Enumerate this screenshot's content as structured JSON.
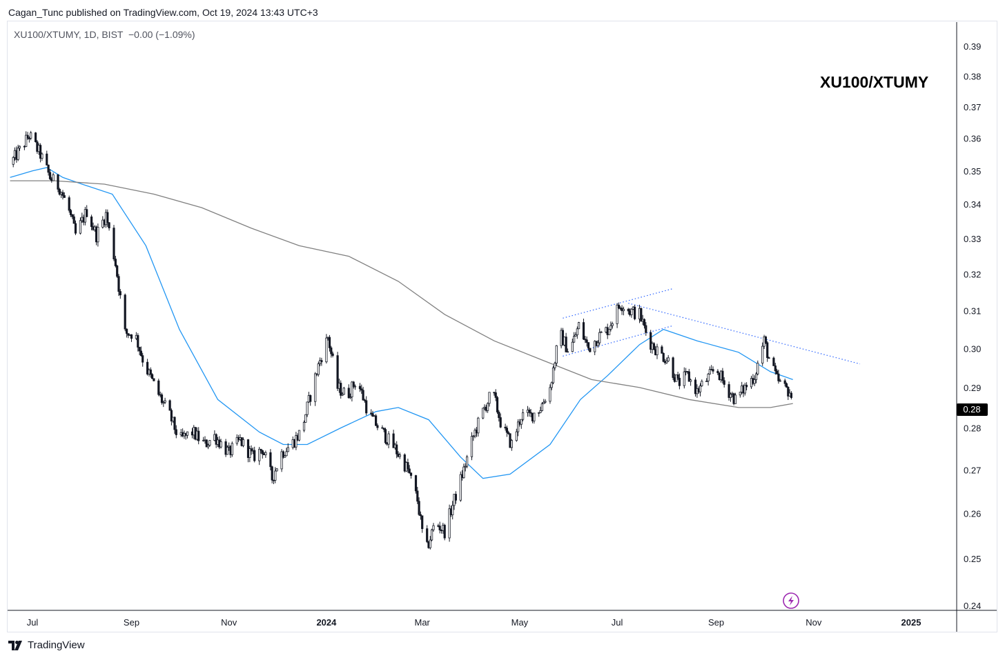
{
  "header": {
    "publisher_line": "Cagan_Tunc published on TradingView.com, Oct 19, 2024 13:43 UTC+3"
  },
  "legend": {
    "symbol_line": "XU100/XTUMY, 1D, BIST  −0.00 (−1.09%)"
  },
  "title": "XU100/XTUMY",
  "footer": {
    "brand": "TradingView",
    "logo_icon": "tradingview-logo-icon"
  },
  "flash_icon": "lightning-icon",
  "colors": {
    "candle": "#131722",
    "ma_short": "#2196f3",
    "ma_long": "#808080",
    "trendline": "#2962ff",
    "price_tag_bg": "#000000",
    "flash_icon": "#9c27b0"
  },
  "chart_data": {
    "type": "candlestick",
    "symbol": "XU100/XTUMY",
    "interval": "1D",
    "exchange": "BIST",
    "change": "−0.00",
    "change_percent": "−1.09%",
    "last_price": "0.28",
    "y_scale": "log",
    "y_ticks": [
      "0.39",
      "0.38",
      "0.37",
      "0.36",
      "0.35",
      "0.34",
      "0.33",
      "0.32",
      "0.31",
      "0.30",
      "0.29",
      "0.28",
      "0.27",
      "0.26",
      "0.25",
      "0.24"
    ],
    "ylim": [
      0.24,
      0.39
    ],
    "x_ticks": [
      {
        "label": "Jul",
        "date": "2023-07-01",
        "bold": false
      },
      {
        "label": "Sep",
        "date": "2023-09-01",
        "bold": false
      },
      {
        "label": "Nov",
        "date": "2023-11-01",
        "bold": false
      },
      {
        "label": "2024",
        "date": "2024-01-01",
        "bold": true
      },
      {
        "label": "Mar",
        "date": "2024-03-01",
        "bold": false
      },
      {
        "label": "May",
        "date": "2024-05-01",
        "bold": false
      },
      {
        "label": "Jul",
        "date": "2024-07-01",
        "bold": false
      },
      {
        "label": "Sep",
        "date": "2024-09-01",
        "bold": false
      },
      {
        "label": "Nov",
        "date": "2024-11-01",
        "bold": false
      },
      {
        "label": "2025",
        "date": "2025-01-01",
        "bold": true
      }
    ],
    "price_path": [
      [
        "2023-06-17",
        0.352
      ],
      [
        "2023-06-24",
        0.357
      ],
      [
        "2023-06-29",
        0.361
      ],
      [
        "2023-07-06",
        0.355
      ],
      [
        "2023-07-12",
        0.348
      ],
      [
        "2023-07-18",
        0.345
      ],
      [
        "2023-07-24",
        0.338
      ],
      [
        "2023-07-28",
        0.331
      ],
      [
        "2023-08-04",
        0.338
      ],
      [
        "2023-08-10",
        0.331
      ],
      [
        "2023-08-16",
        0.337
      ],
      [
        "2023-08-22",
        0.323
      ],
      [
        "2023-08-28",
        0.304
      ],
      [
        "2023-09-03",
        0.304
      ],
      [
        "2023-09-09",
        0.296
      ],
      [
        "2023-09-17",
        0.289
      ],
      [
        "2023-09-25",
        0.283
      ],
      [
        "2023-10-01",
        0.277
      ],
      [
        "2023-10-09",
        0.279
      ],
      [
        "2023-10-17",
        0.276
      ],
      [
        "2023-10-23",
        0.278
      ],
      [
        "2023-11-01",
        0.274
      ],
      [
        "2023-11-08",
        0.277
      ],
      [
        "2023-11-16",
        0.273
      ],
      [
        "2023-11-22",
        0.275
      ],
      [
        "2023-11-28",
        0.268
      ],
      [
        "2023-12-04",
        0.274
      ],
      [
        "2023-12-10",
        0.276
      ],
      [
        "2023-12-16",
        0.279
      ],
      [
        "2023-12-22",
        0.288
      ],
      [
        "2023-12-28",
        0.297
      ],
      [
        "2024-01-02",
        0.303
      ],
      [
        "2024-01-08",
        0.29
      ],
      [
        "2024-01-14",
        0.288
      ],
      [
        "2024-01-20",
        0.292
      ],
      [
        "2024-01-28",
        0.283
      ],
      [
        "2024-02-05",
        0.279
      ],
      [
        "2024-02-13",
        0.275
      ],
      [
        "2024-02-21",
        0.27
      ],
      [
        "2024-02-27",
        0.263
      ],
      [
        "2024-03-03",
        0.251
      ],
      [
        "2024-03-09",
        0.258
      ],
      [
        "2024-03-15",
        0.256
      ],
      [
        "2024-03-21",
        0.263
      ],
      [
        "2024-03-27",
        0.27
      ],
      [
        "2024-04-02",
        0.278
      ],
      [
        "2024-04-08",
        0.284
      ],
      [
        "2024-04-14",
        0.289
      ],
      [
        "2024-04-20",
        0.28
      ],
      [
        "2024-04-26",
        0.276
      ],
      [
        "2024-05-02",
        0.283
      ],
      [
        "2024-05-08",
        0.283
      ],
      [
        "2024-05-14",
        0.285
      ],
      [
        "2024-05-20",
        0.29
      ],
      [
        "2024-05-26",
        0.304
      ],
      [
        "2024-06-01",
        0.299
      ],
      [
        "2024-06-07",
        0.306
      ],
      [
        "2024-06-13",
        0.3
      ],
      [
        "2024-06-19",
        0.303
      ],
      [
        "2024-06-25",
        0.305
      ],
      [
        "2024-07-03",
        0.312
      ],
      [
        "2024-07-09",
        0.31
      ],
      [
        "2024-07-15",
        0.309
      ],
      [
        "2024-07-21",
        0.302
      ],
      [
        "2024-07-27",
        0.299
      ],
      [
        "2024-08-02",
        0.297
      ],
      [
        "2024-08-08",
        0.291
      ],
      [
        "2024-08-14",
        0.293
      ],
      [
        "2024-08-20",
        0.289
      ],
      [
        "2024-08-26",
        0.292
      ],
      [
        "2024-09-01",
        0.295
      ],
      [
        "2024-09-07",
        0.29
      ],
      [
        "2024-09-13",
        0.287
      ],
      [
        "2024-09-19",
        0.29
      ],
      [
        "2024-09-25",
        0.293
      ],
      [
        "2024-10-01",
        0.302
      ],
      [
        "2024-10-05",
        0.296
      ],
      [
        "2024-10-09",
        0.292
      ],
      [
        "2024-10-13",
        0.29
      ],
      [
        "2024-10-17",
        0.289
      ],
      [
        "2024-10-19",
        0.283
      ]
    ],
    "moving_averages": [
      {
        "color": "#2196f3",
        "points": [
          [
            "2023-06-17",
            0.348
          ],
          [
            "2023-07-01",
            0.35
          ],
          [
            "2023-07-10",
            0.351
          ],
          [
            "2023-07-20",
            0.348
          ],
          [
            "2023-08-01",
            0.346
          ],
          [
            "2023-08-20",
            0.343
          ],
          [
            "2023-09-10",
            0.328
          ],
          [
            "2023-10-01",
            0.305
          ],
          [
            "2023-10-25",
            0.287
          ],
          [
            "2023-11-20",
            0.279
          ],
          [
            "2023-12-05",
            0.276
          ],
          [
            "2023-12-20",
            0.276
          ],
          [
            "2024-01-10",
            0.28
          ],
          [
            "2024-02-01",
            0.284
          ],
          [
            "2024-02-15",
            0.285
          ],
          [
            "2024-03-05",
            0.282
          ],
          [
            "2024-03-25",
            0.273
          ],
          [
            "2024-04-08",
            0.268
          ],
          [
            "2024-04-25",
            0.269
          ],
          [
            "2024-05-20",
            0.276
          ],
          [
            "2024-06-08",
            0.287
          ],
          [
            "2024-06-25",
            0.293
          ],
          [
            "2024-07-15",
            0.301
          ],
          [
            "2024-07-30",
            0.305
          ],
          [
            "2024-08-20",
            0.302
          ],
          [
            "2024-09-15",
            0.299
          ],
          [
            "2024-10-05",
            0.294
          ],
          [
            "2024-10-19",
            0.292
          ]
        ]
      },
      {
        "color": "#808080",
        "points": [
          [
            "2023-06-17",
            0.347
          ],
          [
            "2023-07-15",
            0.347
          ],
          [
            "2023-08-15",
            0.346
          ],
          [
            "2023-09-15",
            0.343
          ],
          [
            "2023-10-15",
            0.339
          ],
          [
            "2023-11-15",
            0.333
          ],
          [
            "2023-12-15",
            0.328
          ],
          [
            "2024-01-15",
            0.325
          ],
          [
            "2024-02-15",
            0.318
          ],
          [
            "2024-03-15",
            0.309
          ],
          [
            "2024-04-15",
            0.302
          ],
          [
            "2024-05-15",
            0.297
          ],
          [
            "2024-06-15",
            0.292
          ],
          [
            "2024-07-15",
            0.29
          ],
          [
            "2024-08-15",
            0.287
          ],
          [
            "2024-09-15",
            0.285
          ],
          [
            "2024-10-05",
            0.285
          ],
          [
            "2024-10-19",
            0.286
          ]
        ]
      }
    ],
    "trendlines": [
      {
        "from": [
          "2024-05-28",
          0.308
        ],
        "to": [
          "2024-08-05",
          0.316
        ],
        "style": "dotted"
      },
      {
        "from": [
          "2024-05-28",
          0.298
        ],
        "to": [
          "2024-08-05",
          0.306
        ],
        "style": "dotted"
      },
      {
        "from": [
          "2024-07-08",
          0.312
        ],
        "to": [
          "2024-11-30",
          0.296
        ],
        "style": "dotted"
      }
    ]
  }
}
